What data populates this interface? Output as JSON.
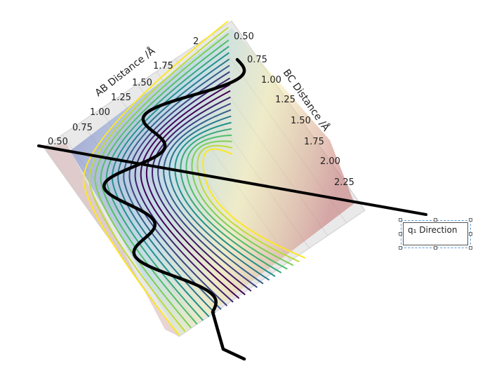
{
  "axes": {
    "ab_title": "AB Distance /Å",
    "bc_title": "BC Distance /Å",
    "ab_ticks": [
      "0.50",
      "0.75",
      "1.00",
      "1.25",
      "1.50",
      "1.75",
      "2"
    ],
    "bc_ticks": [
      "0.50",
      "0.75",
      "1.00",
      "1.25",
      "1.50",
      "1.75",
      "2.00",
      "2.25"
    ]
  },
  "annotation": {
    "label": "q₁ Direction"
  },
  "colors": {
    "plane_left": "#7a7ac8",
    "plane_right": "#c98585",
    "trajectory": "#000000",
    "contour_low": "#440154",
    "contour_high": "#fde725"
  }
}
